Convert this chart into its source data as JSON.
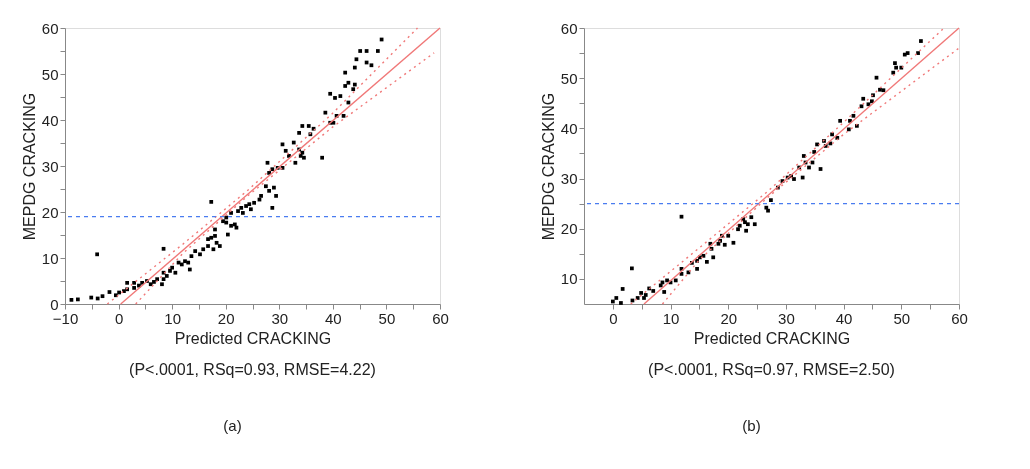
{
  "chart_data": [
    {
      "type": "scatter",
      "xlabel": "Predicted CRACKING",
      "ylabel": "MEPDG CRACKING",
      "marker": "square",
      "grid": false,
      "annotations": [
        "(P<.0001, RSq=0.93, RMSE=4.22)",
        "(a)"
      ],
      "xlim": [
        -10,
        60
      ],
      "ylim": [
        0,
        60
      ],
      "xticks": [
        -10,
        {
          "value": -5,
          "label": null
        },
        0,
        {
          "value": 5,
          "label": null
        },
        10,
        {
          "value": 15,
          "label": null
        },
        20,
        {
          "value": 25,
          "label": null
        },
        30,
        {
          "value": 35,
          "label": null
        },
        40,
        {
          "value": 45,
          "label": null
        },
        50,
        {
          "value": 55,
          "label": null
        },
        60
      ],
      "yticks": [
        0,
        {
          "value": 5,
          "label": null
        },
        10,
        {
          "value": 15,
          "label": null
        },
        20,
        {
          "value": 25,
          "label": null
        },
        30,
        {
          "value": 35,
          "label": null
        },
        40,
        {
          "value": 45,
          "label": null
        },
        50,
        {
          "value": 55,
          "label": null
        },
        60
      ],
      "ref_lines": [
        {
          "axis": "y",
          "value": 19,
          "color": "#4a7cf0",
          "line_style": "dashed"
        }
      ],
      "series": [
        {
          "color": "#000000",
          "x": [
            -8.8,
            -7.6,
            -5.1,
            -3.9,
            -3.0,
            -1.7,
            -0.5,
            0.1,
            1.0,
            1.6,
            2.9,
            1.6,
            2.9,
            3.8,
            4.4,
            5.3,
            6.0,
            6.6,
            7.2,
            8.1,
            8.4,
            9.0,
            8.4,
            9.6,
            10.6,
            10.0,
            11.2,
            11.8,
            12.4,
            13.0,
            13.6,
            13.3,
            14.3,
            15.2,
            15.8,
            16.7,
            16.7,
            17.3,
            18.0,
            18.3,
            18.9,
            17.7,
            18.0,
            19.5,
            20.1,
            20.4,
            21.0,
            21.7,
            22.0,
            20.1,
            21.0,
            22.3,
            22.9,
            23.2,
            23.8,
            24.4,
            24.7,
            25.3,
            26.3,
            26.6,
            27.5,
            28.1,
            29.0,
            29.4,
            28.7,
            17.3,
            8.4,
            -4.0,
            27.8,
            28.1,
            28.7,
            29.7,
            30.6,
            31.2,
            30.6,
            31.8,
            32.7,
            33.0,
            33.7,
            34.0,
            34.3,
            34.6,
            33.7,
            34.3,
            35.5,
            35.8,
            36.4,
            38.0,
            38.6,
            39.5,
            40.1,
            40.7,
            39.5,
            40.4,
            41.4,
            42.0,
            42.3,
            42.9,
            42.9,
            43.8,
            44.1,
            42.3,
            44.1,
            44.4,
            45.1,
            46.3,
            46.3,
            47.2,
            48.4,
            49.1
          ],
          "values": [
            0.9,
            1.0,
            1.4,
            1.2,
            1.7,
            2.6,
            1.9,
            2.5,
            2.8,
            3.2,
            3.5,
            4.6,
            4.6,
            4.0,
            4.6,
            5.0,
            4.3,
            4.8,
            5.4,
            4.3,
            5.4,
            6.1,
            6.8,
            7.2,
            6.8,
            7.9,
            9.0,
            8.6,
            9.3,
            9.0,
            10.4,
            7.5,
            11.5,
            10.8,
            11.9,
            12.6,
            14.1,
            14.4,
            16.2,
            13.3,
            12.6,
            11.9,
            14.8,
            18.0,
            17.7,
            15.1,
            17.0,
            17.3,
            16.6,
            18.8,
            19.8,
            20.2,
            20.9,
            19.8,
            21.3,
            21.7,
            20.6,
            22.0,
            22.7,
            23.5,
            25.6,
            24.6,
            25.3,
            23.5,
            20.9,
            22.2,
            12.0,
            10.8,
            30.7,
            28.5,
            29.3,
            29.6,
            29.6,
            33.3,
            34.7,
            32.2,
            35.1,
            30.7,
            33.6,
            32.2,
            32.9,
            31.8,
            37.2,
            38.7,
            38.7,
            36.9,
            38.1,
            31.8,
            41.6,
            39.4,
            39.4,
            40.9,
            45.7,
            44.8,
            45.2,
            40.9,
            47.4,
            48.1,
            43.8,
            46.7,
            47.7,
            50.3,
            51.4,
            53.2,
            55.0,
            55.0,
            52.5,
            51.9,
            55.0,
            57.5
          ]
        },
        {
          "type": "line",
          "marker": "none",
          "color": "#f07878",
          "line_style": "solid",
          "x": [
            0.4,
            60
          ],
          "values": [
            0,
            60
          ]
        },
        {
          "type": "line",
          "marker": "none",
          "color": "#f07878",
          "line_style": "dotted",
          "x": [
            -2.1,
            12,
            24,
            40,
            55.8
          ],
          "values": [
            0,
            13,
            24.6,
            41.5,
            60
          ]
        },
        {
          "type": "line",
          "marker": "none",
          "color": "#f07878",
          "line_style": "dotted",
          "x": [
            3.2,
            12,
            24,
            40,
            58.9
          ],
          "values": [
            0,
            11,
            23.4,
            38.5,
            54.6
          ]
        }
      ]
    },
    {
      "type": "scatter",
      "xlabel": "Predicted CRACKING",
      "ylabel": "MEPDG CRACKING",
      "marker": "square",
      "grid": false,
      "annotations": [
        "(P<.0001, RSq=0.97, RMSE=2.50)",
        "(b)"
      ],
      "xlim": [
        -5,
        60
      ],
      "ylim": [
        5,
        60
      ],
      "xticks": [
        0,
        {
          "value": 5,
          "label": null
        },
        10,
        {
          "value": 15,
          "label": null
        },
        20,
        {
          "value": 25,
          "label": null
        },
        30,
        {
          "value": 35,
          "label": null
        },
        40,
        {
          "value": 45,
          "label": null
        },
        50,
        {
          "value": 55,
          "label": null
        },
        60
      ],
      "yticks": [
        10,
        {
          "value": 15,
          "label": null
        },
        20,
        {
          "value": 25,
          "label": null
        },
        30,
        {
          "value": 35,
          "label": null
        },
        40,
        {
          "value": 45,
          "label": null
        },
        50,
        {
          "value": 55,
          "label": null
        },
        60
      ],
      "ref_lines": [
        {
          "axis": "y",
          "value": 25,
          "color": "#4a7cf0",
          "line_style": "dashed"
        }
      ],
      "series": [
        {
          "color": "#000000",
          "x": [
            0.0,
            0.6,
            1.4,
            1.7,
            3.3,
            3.4,
            4.3,
            4.9,
            5.7,
            5.4,
            6.3,
            7.0,
            8.3,
            8.9,
            8.6,
            9.4,
            10.0,
            10.9,
            11.9,
            11.9,
            13.1,
            13.7,
            14.6,
            14.6,
            15.1,
            15.7,
            16.3,
            16.9,
            17.1,
            17.4,
            18.3,
            18.6,
            18.9,
            19.4,
            20.0,
            20.9,
            21.7,
            22.0,
            22.6,
            22.9,
            23.1,
            23.4,
            24.0,
            24.6,
            11.9,
            26.6,
            26.9,
            27.4,
            28.6,
            29.4,
            30.3,
            30.9,
            31.4,
            32.3,
            32.9,
            33.1,
            33.4,
            34.0,
            34.6,
            34.9,
            35.4,
            36.0,
            36.6,
            36.9,
            37.7,
            38.0,
            38.9,
            39.4,
            40.9,
            41.1,
            41.7,
            42.3,
            43.1,
            43.4,
            44.3,
            44.9,
            45.7,
            45.1,
            46.3,
            46.9,
            48.6,
            48.9,
            49.1,
            50.0,
            50.6,
            51.1,
            52.9,
            53.4
          ],
          "values": [
            5.5,
            6.2,
            5.2,
            8.0,
            12.1,
            5.7,
            6.2,
            7.2,
            6.8,
            6.2,
            8.1,
            7.6,
            8.7,
            7.4,
            9.3,
            9.7,
            9.3,
            9.7,
            12.0,
            11.0,
            11.3,
            13.2,
            13.6,
            12.0,
            14.3,
            14.6,
            13.4,
            17.0,
            16.0,
            14.3,
            17.0,
            17.6,
            18.6,
            16.8,
            18.6,
            17.2,
            19.9,
            20.6,
            21.9,
            21.3,
            19.6,
            20.9,
            22.3,
            20.9,
            22.4,
            24.2,
            23.6,
            25.7,
            28.2,
            29.5,
            30.2,
            30.5,
            29.9,
            32.2,
            30.2,
            34.5,
            33.2,
            32.2,
            33.2,
            35.3,
            36.8,
            31.9,
            37.5,
            36.5,
            37.0,
            38.8,
            38.1,
            41.5,
            39.8,
            41.5,
            42.5,
            40.5,
            44.4,
            45.9,
            44.8,
            45.4,
            50.1,
            46.6,
            47.7,
            47.6,
            51.1,
            53.0,
            52.1,
            52.1,
            54.7,
            55.0,
            55.0,
            57.4
          ]
        },
        {
          "type": "line",
          "marker": "none",
          "color": "#f07878",
          "line_style": "solid",
          "x": [
            5.4,
            60
          ],
          "values": [
            5,
            60
          ]
        },
        {
          "type": "line",
          "marker": "none",
          "color": "#f07878",
          "line_style": "dotted",
          "x": [
            3.1,
            15,
            27,
            40,
            57.4
          ],
          "values": [
            5,
            16.2,
            27.6,
            41.2,
            60
          ]
        },
        {
          "type": "line",
          "marker": "none",
          "color": "#f07878",
          "line_style": "dotted",
          "x": [
            8.6,
            15,
            27,
            40,
            60
          ],
          "values": [
            5,
            13.8,
            26.4,
            38.8,
            56
          ]
        }
      ]
    }
  ]
}
